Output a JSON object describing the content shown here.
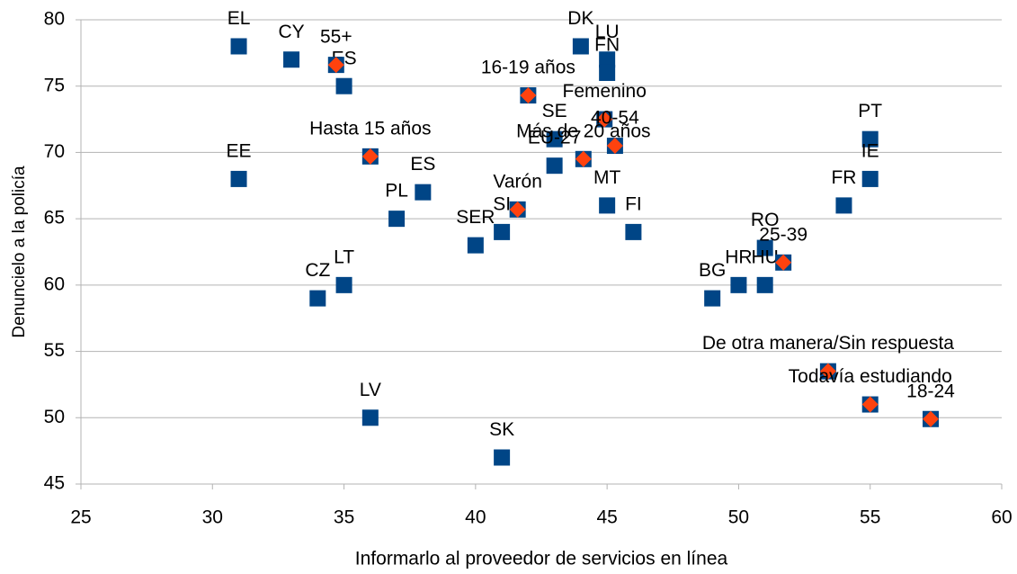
{
  "chart_data": {
    "type": "scatter",
    "x_label": "Informarlo al proveedor de servicios en línea",
    "y_label": "Denuncielo a la policía",
    "xlim": [
      25,
      60
    ],
    "xticks": [
      25,
      30,
      35,
      40,
      45,
      50,
      55,
      60
    ],
    "ylim": [
      45,
      80
    ],
    "yticks": [
      45,
      50,
      55,
      60,
      65,
      70,
      75,
      80
    ],
    "grid": true,
    "series": [
      {
        "color": "#004586",
        "marker": "square",
        "labels": [
          "EL",
          "CY",
          "ES",
          "EE",
          "PL",
          "ES",
          "SER",
          "SI",
          "SK",
          "LV",
          "LT",
          "CZ",
          "SE",
          "EU-27",
          "DK",
          "LU",
          "FN",
          "MT",
          "FI",
          "BG",
          "RO",
          "HR",
          "HU",
          "FR",
          "PT",
          "IE"
        ],
        "x": [
          31,
          33,
          35,
          31,
          37,
          38,
          40,
          41,
          41,
          36,
          35,
          34,
          43,
          43,
          44,
          45,
          45,
          45,
          46,
          49,
          51,
          50,
          51,
          54,
          55,
          55
        ],
        "y": [
          78,
          77,
          75,
          68,
          65,
          67,
          63,
          64,
          47,
          50,
          60,
          59,
          71,
          69,
          78,
          77,
          76,
          66,
          64,
          59,
          62.8,
          60,
          60,
          66,
          71,
          68
        ]
      },
      {
        "color": "#ff420e",
        "marker": "diamond",
        "border_color": "#004586",
        "labels": [
          "55+",
          "Hasta 15 años",
          "16-19 años",
          "Femenino",
          "40-54",
          "Más de 20 años",
          "Varón",
          "25-39",
          "De otra manera/Sin respuesta",
          "Todavía estudiando",
          "18-24"
        ],
        "x": [
          34.7,
          36,
          42,
          44.9,
          45.3,
          44.1,
          41.6,
          51.7,
          53.4,
          55,
          57.3
        ],
        "y": [
          76.6,
          69.7,
          74.3,
          72.5,
          70.5,
          69.5,
          65.7,
          61.7,
          53.5,
          51,
          49.9
        ]
      }
    ]
  }
}
